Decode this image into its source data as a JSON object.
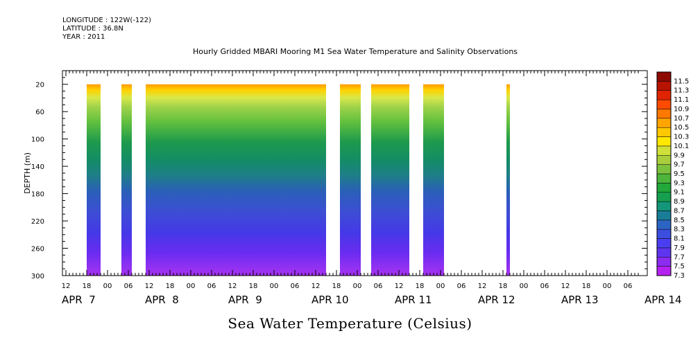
{
  "header": {
    "longitude": "LONGITUDE : 122W(-122)",
    "latitude": "LATITUDE : 36.8N",
    "year": "YEAR : 2011",
    "title": "Hourly Gridded MBARI Mooring M1 Sea Water Temperature and Salinity Observations"
  },
  "chart_data": {
    "type": "heatmap",
    "title": "Hourly Gridded MBARI Mooring M1 Sea Water Temperature and Salinity Observations",
    "xlabel": "Sea Water Temperature (Celsius)",
    "ylabel": "DEPTH (m)",
    "x_hour_ticks": [
      "12",
      "18",
      "00",
      "06",
      "12",
      "18",
      "00",
      "06",
      "12",
      "18",
      "00",
      "06",
      "12",
      "18",
      "00",
      "06",
      "12",
      "18",
      "00",
      "06",
      "12",
      "18",
      "00",
      "06",
      "12",
      "18",
      "00",
      "06"
    ],
    "x_day_labels": [
      "APR  7",
      "APR  8",
      "APR  9",
      "APR 10",
      "APR 11",
      "APR 12",
      "APR 13",
      "APR 14"
    ],
    "y_ticks": [
      20,
      60,
      100,
      140,
      180,
      220,
      260,
      300
    ],
    "ylim": [
      0,
      300
    ],
    "y_inverted": true,
    "colorbar": {
      "labels": [
        "7.3",
        "7.5",
        "7.7",
        "7.9",
        "8.1",
        "8.3",
        "8.5",
        "8.7",
        "8.9",
        "9.1",
        "9.3",
        "9.5",
        "9.7",
        "9.9",
        "10.1",
        "10.3",
        "10.5",
        "10.7",
        "10.9",
        "11.1",
        "11.3",
        "11.5"
      ],
      "min": 7.3,
      "max": 11.5
    },
    "data_segments_hours_from_apr7_12": [
      [
        6,
        10
      ],
      [
        16,
        19
      ],
      [
        23,
        75
      ],
      [
        79,
        85
      ],
      [
        88,
        99
      ],
      [
        103,
        109
      ],
      [
        127,
        128
      ]
    ]
  }
}
